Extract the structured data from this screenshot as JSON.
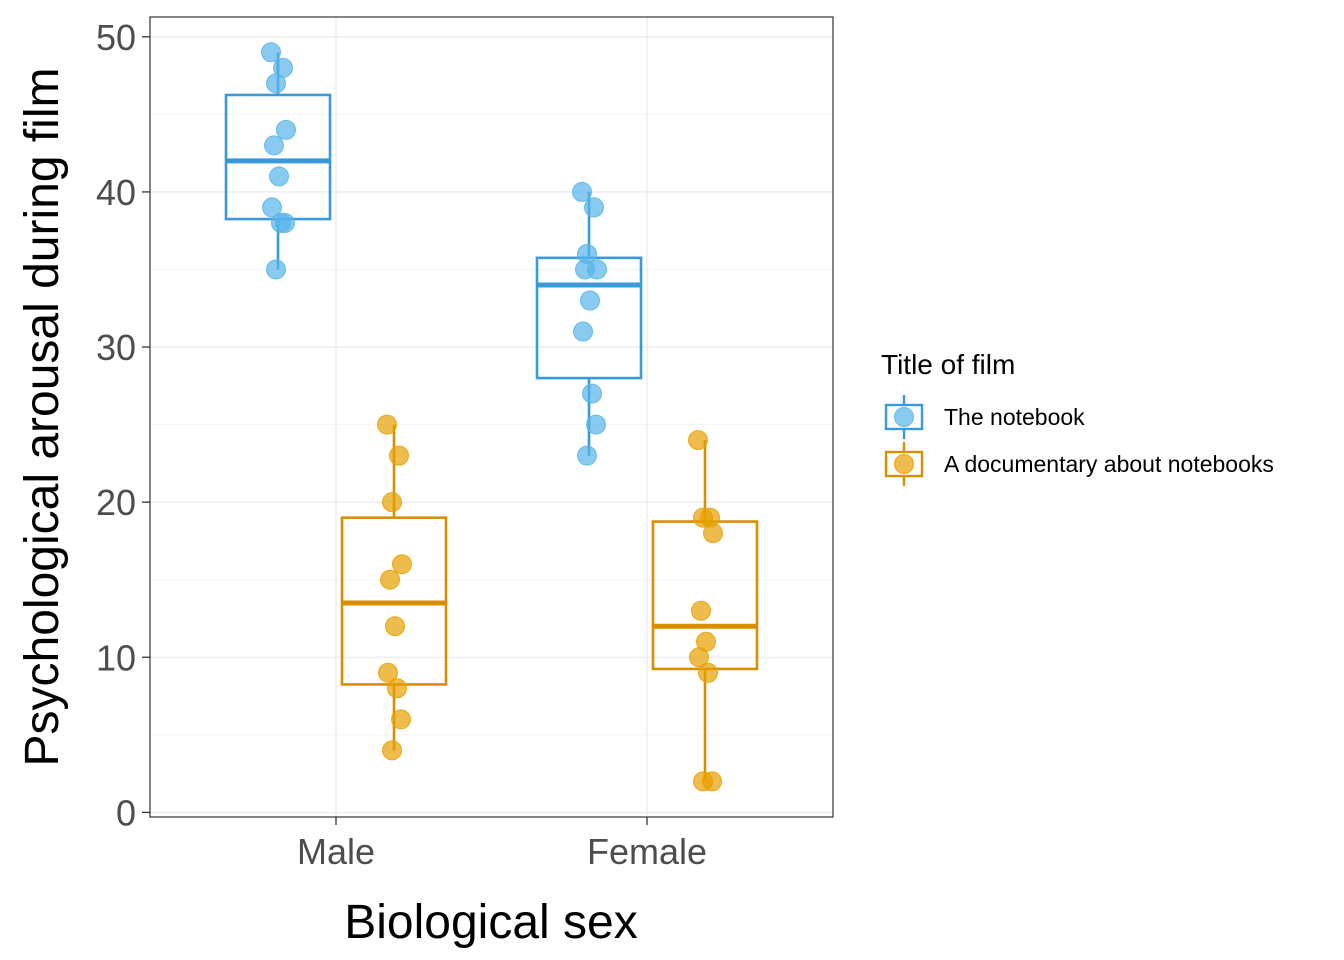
{
  "chart_data": {
    "type": "box",
    "xlabel": "Biological sex",
    "ylabel": "Psychological arousal during film",
    "categories": [
      "Male",
      "Female"
    ],
    "ylim": [
      0,
      50
    ],
    "yticks": [
      0,
      10,
      20,
      30,
      40,
      50
    ],
    "grid": true,
    "legend": {
      "title": "Title of film",
      "position": "right"
    },
    "series": [
      {
        "name": "The notebook",
        "color": "#56B4E9",
        "box_color": "#3A9AD9",
        "boxes": [
          {
            "category": "Male",
            "min": 35,
            "q1": 38.25,
            "median": 42,
            "q3": 46.25,
            "max": 49,
            "points": [
              49,
              48,
              47,
              44,
              43,
              41,
              39,
              38,
              38,
              35
            ]
          },
          {
            "category": "Female",
            "min": 23,
            "q1": 28,
            "median": 34,
            "q3": 35.75,
            "max": 40,
            "points": [
              40,
              39,
              36,
              35,
              35,
              33,
              31,
              27,
              25,
              23
            ]
          }
        ]
      },
      {
        "name": "A documentary about notebooks",
        "color": "#E69F00",
        "box_color": "#D98E00",
        "boxes": [
          {
            "category": "Male",
            "min": 4,
            "q1": 8.25,
            "median": 13.5,
            "q3": 19,
            "max": 25,
            "points": [
              25,
              23,
              20,
              16,
              15,
              12,
              9,
              8,
              6,
              4
            ]
          },
          {
            "category": "Female",
            "min": 2,
            "q1": 9.25,
            "median": 12,
            "q3": 18.75,
            "max": 24,
            "points": [
              24,
              19,
              19,
              18,
              13,
              11,
              10,
              9,
              2,
              2
            ]
          }
        ]
      }
    ]
  }
}
